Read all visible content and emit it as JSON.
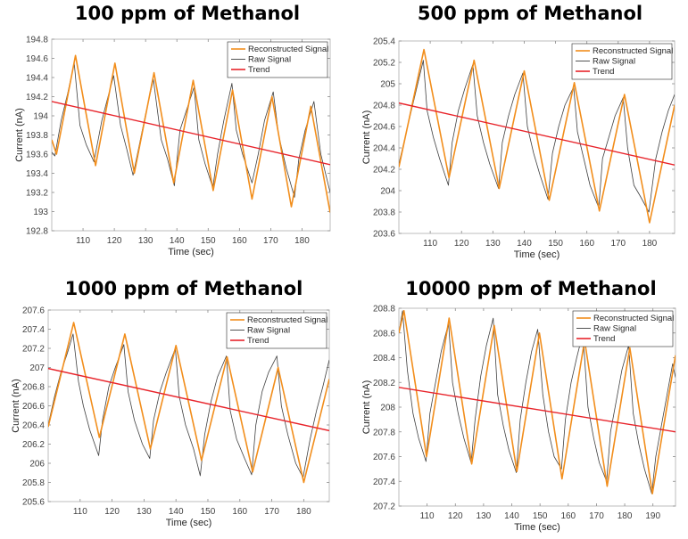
{
  "chart_data": [
    {
      "type": "line",
      "title": "100 ppm of Methanol",
      "xlabel": "Time (sec)",
      "ylabel": "Current (nA)",
      "xlim": [
        100,
        189
      ],
      "ylim": [
        192.8,
        194.8
      ],
      "xticks": [
        110,
        120,
        130,
        140,
        150,
        160,
        170,
        180
      ],
      "yticks": [
        192.8,
        193,
        193.2,
        193.4,
        193.6,
        193.8,
        194,
        194.2,
        194.4,
        194.6,
        194.8
      ],
      "grid": false,
      "legend": {
        "position": "top-right",
        "entries": [
          "Reconstructed Signal",
          "Raw Signal",
          "Trend"
        ]
      },
      "series": [
        {
          "name": "Reconstructed Signal",
          "color": "#f28e1c",
          "x": [
            100,
            101.5,
            107.6,
            114,
            120.2,
            126.4,
            132.7,
            139,
            145.2,
            151.6,
            157.8,
            164,
            170.4,
            176.6,
            182.8,
            189
          ],
          "y": [
            193.75,
            193.6,
            194.63,
            193.48,
            194.55,
            193.4,
            194.45,
            193.3,
            194.37,
            193.22,
            194.27,
            193.13,
            194.2,
            193.05,
            194.1,
            192.99
          ]
        },
        {
          "name": "Raw Signal",
          "color": "#404040",
          "x": [
            100,
            101,
            103,
            105,
            107.2,
            109,
            111,
            113.5,
            116,
            118,
            119.8,
            122,
            124,
            126,
            128,
            130,
            132.5,
            135,
            137,
            139.2,
            141,
            143,
            145.5,
            147,
            149,
            151.5,
            153,
            155,
            157.6,
            159,
            161,
            164,
            166,
            168,
            170.8,
            172.5,
            175,
            177.6,
            179,
            181,
            183.8,
            186,
            189
          ],
          "y": [
            193.62,
            193.58,
            193.95,
            194.22,
            194.55,
            193.9,
            193.7,
            193.52,
            193.95,
            194.2,
            194.42,
            193.9,
            193.65,
            193.38,
            193.7,
            194.02,
            194.38,
            193.75,
            193.55,
            193.27,
            193.85,
            194.05,
            194.3,
            193.75,
            193.5,
            193.25,
            193.6,
            193.95,
            194.34,
            193.85,
            193.6,
            193.3,
            193.6,
            193.95,
            194.25,
            193.8,
            193.45,
            193.15,
            193.55,
            193.85,
            194.15,
            193.6,
            193.2
          ]
        },
        {
          "name": "Trend",
          "color": "#e8242b",
          "x": [
            100,
            189
          ],
          "y": [
            194.15,
            193.49
          ]
        }
      ]
    },
    {
      "type": "line",
      "title": "500 ppm of Methanol",
      "xlabel": "Time (sec)",
      "ylabel": "Current (nA)",
      "xlim": [
        100,
        188
      ],
      "ylim": [
        203.6,
        205.4
      ],
      "xticks": [
        110,
        120,
        130,
        140,
        150,
        160,
        170,
        180
      ],
      "yticks": [
        203.6,
        203.8,
        204,
        204.2,
        204.4,
        204.6,
        204.8,
        205,
        205.2,
        205.4
      ],
      "grid": false,
      "legend": {
        "position": "top-right",
        "entries": [
          "Reconstructed Signal",
          "Raw Signal",
          "Trend"
        ]
      },
      "series": [
        {
          "name": "Reconstructed Signal",
          "color": "#f28e1c",
          "x": [
            100,
            108,
            116,
            124,
            132,
            140,
            148,
            156,
            164,
            172,
            180,
            188
          ],
          "y": [
            204.22,
            205.32,
            204.12,
            205.22,
            204.02,
            205.12,
            203.91,
            205.01,
            203.81,
            204.9,
            203.7,
            204.8
          ]
        },
        {
          "name": "Raw Signal",
          "color": "#404040",
          "x": [
            100,
            102,
            104,
            106,
            107.8,
            109,
            111,
            113,
            115.8,
            117,
            119,
            121,
            123.6,
            125,
            127,
            129,
            131.8,
            133,
            135,
            137,
            139.6,
            141,
            143,
            145,
            147.6,
            149,
            151,
            153,
            155.8,
            157,
            159,
            161,
            163.8,
            165,
            167,
            169,
            171.6,
            173,
            175,
            177,
            179.8,
            182,
            184,
            186,
            188
          ],
          "y": [
            204.25,
            204.5,
            204.75,
            205.0,
            205.22,
            204.75,
            204.5,
            204.3,
            204.05,
            204.45,
            204.75,
            204.95,
            205.18,
            204.7,
            204.45,
            204.25,
            204.02,
            204.45,
            204.7,
            204.9,
            205.1,
            204.6,
            204.35,
            204.15,
            203.92,
            204.35,
            204.6,
            204.8,
            204.97,
            204.55,
            204.3,
            204.05,
            203.84,
            204.3,
            204.5,
            204.7,
            204.87,
            204.4,
            204.05,
            203.95,
            203.8,
            204.3,
            204.55,
            204.75,
            204.9
          ]
        },
        {
          "name": "Trend",
          "color": "#e8242b",
          "x": [
            100,
            188
          ],
          "y": [
            204.82,
            204.24
          ]
        }
      ]
    },
    {
      "type": "line",
      "title": "1000 ppm of Methanol",
      "xlabel": "Time (sec)",
      "ylabel": "Current (nA)",
      "xlim": [
        100,
        188
      ],
      "ylim": [
        205.6,
        207.6
      ],
      "xticks": [
        110,
        120,
        130,
        140,
        150,
        160,
        170,
        180
      ],
      "yticks": [
        205.6,
        205.8,
        206,
        206.2,
        206.4,
        206.6,
        206.8,
        207,
        207.2,
        207.4,
        207.6
      ],
      "grid": false,
      "legend": {
        "position": "top-right",
        "entries": [
          "Reconstructed Signal",
          "Raw Signal",
          "Trend"
        ]
      },
      "series": [
        {
          "name": "Reconstructed Signal",
          "color": "#f28e1c",
          "x": [
            100,
            108,
            116,
            124,
            132,
            140,
            148,
            156,
            164,
            172,
            180,
            188
          ],
          "y": [
            206.38,
            207.47,
            206.27,
            207.35,
            206.15,
            207.23,
            206.03,
            207.11,
            205.91,
            207.0,
            205.8,
            206.88
          ]
        },
        {
          "name": "Raw Signal",
          "color": "#404040",
          "x": [
            100,
            102,
            104,
            106,
            107.8,
            109.5,
            111,
            113,
            115.8,
            117,
            119,
            121,
            123.7,
            125,
            127,
            129.5,
            131.8,
            133,
            135,
            137,
            139.8,
            141,
            143,
            145.5,
            147.6,
            149,
            151,
            153,
            155.8,
            157,
            159,
            161.5,
            163.7,
            165,
            167,
            169,
            171.6,
            173,
            175,
            177.5,
            179.8,
            182,
            184,
            186,
            188
          ],
          "y": [
            206.4,
            206.7,
            206.95,
            207.15,
            207.35,
            206.85,
            206.6,
            206.35,
            206.08,
            206.45,
            206.8,
            207.0,
            207.24,
            206.75,
            206.45,
            206.2,
            206.05,
            206.45,
            206.75,
            206.95,
            207.2,
            206.7,
            206.4,
            206.15,
            205.87,
            206.3,
            206.65,
            206.9,
            207.12,
            206.55,
            206.25,
            206.05,
            205.88,
            206.4,
            206.75,
            206.95,
            207.12,
            206.6,
            206.3,
            206.0,
            205.85,
            206.25,
            206.55,
            206.8,
            207.08
          ]
        },
        {
          "name": "Trend",
          "color": "#e8242b",
          "x": [
            100,
            188
          ],
          "y": [
            206.99,
            206.34
          ]
        }
      ]
    },
    {
      "type": "line",
      "title": "10000 ppm of Methanol",
      "xlabel": "Time (sec)",
      "ylabel": "Current (nA)",
      "xlim": [
        100,
        198
      ],
      "ylim": [
        207.2,
        208.8
      ],
      "xticks": [
        110,
        120,
        130,
        140,
        150,
        160,
        170,
        180,
        190
      ],
      "yticks": [
        207.2,
        207.4,
        207.6,
        207.8,
        208,
        208.2,
        208.4,
        208.6,
        208.8
      ],
      "grid": false,
      "legend": {
        "position": "top-right",
        "entries": [
          "Reconstructed Signal",
          "Raw Signal",
          "Trend"
        ]
      },
      "series": [
        {
          "name": "Reconstructed Signal",
          "color": "#f28e1c",
          "x": [
            100,
            101.8,
            109.8,
            117.8,
            125.8,
            133.8,
            141.8,
            149.8,
            157.8,
            165.8,
            173.8,
            181.8,
            189.8,
            198
          ],
          "y": [
            208.6,
            208.78,
            207.6,
            208.72,
            207.54,
            208.66,
            207.48,
            208.6,
            207.42,
            208.54,
            207.36,
            208.48,
            207.3,
            208.42
          ]
        },
        {
          "name": "Raw Signal",
          "color": "#404040",
          "x": [
            100,
            101.3,
            103,
            105,
            107,
            109.6,
            111,
            113,
            115,
            117.6,
            119,
            121,
            123,
            125.6,
            127,
            129,
            131,
            133.4,
            135,
            137,
            139,
            141.6,
            143,
            145,
            147,
            149.2,
            151,
            153,
            155,
            157.6,
            159,
            161,
            163,
            165.2,
            167,
            169,
            171,
            173.6,
            175,
            177,
            179,
            181.4,
            183,
            185,
            187,
            189.6,
            191,
            193,
            195,
            197,
            198
          ],
          "y": [
            208.6,
            208.78,
            208.3,
            207.95,
            207.75,
            207.56,
            207.95,
            208.2,
            208.45,
            208.68,
            208.2,
            207.95,
            207.75,
            207.55,
            207.9,
            208.25,
            208.5,
            208.72,
            208.1,
            207.85,
            207.65,
            207.47,
            207.9,
            208.2,
            208.45,
            208.63,
            208.1,
            207.8,
            207.6,
            207.5,
            207.9,
            208.2,
            208.4,
            208.6,
            208.0,
            207.75,
            207.55,
            207.4,
            207.8,
            208.05,
            208.3,
            208.5,
            207.95,
            207.7,
            207.5,
            207.3,
            207.6,
            207.85,
            208.1,
            208.35,
            208.24
          ]
        },
        {
          "name": "Trend",
          "color": "#e8242b",
          "x": [
            100,
            198
          ],
          "y": [
            208.16,
            207.8
          ]
        }
      ]
    }
  ]
}
